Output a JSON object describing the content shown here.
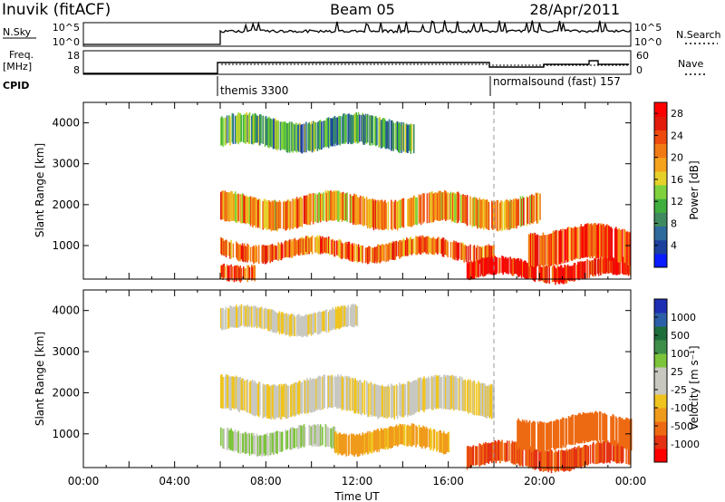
{
  "header": {
    "station": "Inuvik (fitACF)",
    "beam": "Beam 05",
    "date": "28/Apr/2011"
  },
  "colors": {
    "power_scale": [
      "#0a1cff",
      "#1c3f9e",
      "#2f6a9c",
      "#3f8a5e",
      "#3fae3f",
      "#7fd23c",
      "#e6d12a",
      "#f5a21c",
      "#f27a14",
      "#ee4a0e",
      "#e21b0b",
      "#ff0000"
    ],
    "velocity_scale": [
      "#1e2fb4",
      "#2d5fa8",
      "#1e6e3c",
      "#3e8e4a",
      "#7cc43a",
      "#c8c8c0",
      "#c8c8c0",
      "#f0c41e",
      "#f09a1c",
      "#ee6a12",
      "#e43212",
      "#ff0000"
    ],
    "ground_scatter": "#c8c8c0",
    "gridline": "#999999"
  },
  "top_panels": {
    "nsky": {
      "label_left": "N.Sky",
      "ticks_left": [
        "10^5",
        "10^0"
      ],
      "label_right": "N.Search",
      "ticks_right": [
        "10^5",
        "10^0"
      ]
    },
    "freq": {
      "label_left_line1": "Freq.",
      "label_left_line2": "[MHz]",
      "ticks_left": [
        "18",
        "8"
      ],
      "label_right": "Nave",
      "ticks_right": [
        "60",
        "0"
      ]
    },
    "cpid": {
      "label": "CPID",
      "mode1": "themis 3300",
      "mode2": "normalsound (fast) 157"
    }
  },
  "chart_data": [
    {
      "type": "heatmap",
      "title": "",
      "xlabel": "",
      "ylabel": "Slant Range [km]",
      "colorbar_label": "Power [dB]",
      "colorbar_ticks": [
        "4",
        "8",
        "12",
        "16",
        "20",
        "24",
        "28"
      ],
      "colorbar_range": [
        0,
        30
      ],
      "ylim": [
        180,
        4500
      ],
      "xlim_hours": [
        0,
        24
      ],
      "y_ticks": [
        "1000",
        "2000",
        "3000",
        "4000"
      ],
      "data_start_hour": 6.0,
      "mode_change_hour": 18.0,
      "bands": [
        {
          "range_km": [
            1500,
            2200
          ],
          "hours": [
            6,
            20
          ],
          "power_db": 20
        },
        {
          "range_km": [
            700,
            1100
          ],
          "hours": [
            6,
            18
          ],
          "power_db": 22
        },
        {
          "range_km": [
            250,
            600
          ],
          "hours": [
            6,
            7.5
          ],
          "power_db": 24
        },
        {
          "range_km": [
            200,
            600
          ],
          "hours": [
            16.8,
            24
          ],
          "power_db": 26
        },
        {
          "range_km": [
            600,
            1400
          ],
          "hours": [
            19.5,
            24
          ],
          "power_db": 24
        },
        {
          "range_km": [
            3400,
            4100
          ],
          "hours": [
            6,
            14.5
          ],
          "power_db": 10
        }
      ]
    },
    {
      "type": "heatmap",
      "title": "",
      "xlabel": "Time UT",
      "ylabel": "Slant Range [km]",
      "colorbar_label": "Velocity [m s⁻¹]",
      "colorbar_ticks": [
        "1000",
        "500",
        "100",
        "25",
        "-25",
        "-100",
        "-500",
        "-1000"
      ],
      "ylim": [
        180,
        4500
      ],
      "xlim_hours": [
        0,
        24
      ],
      "x_ticks": [
        "00:00",
        "04:00",
        "08:00",
        "12:00",
        "16:00",
        "20:00",
        "00:00"
      ],
      "y_ticks": [
        "1000",
        "2000",
        "3000",
        "4000"
      ],
      "data_start_hour": 6.0,
      "mode_change_hour": 18.0,
      "bands": [
        {
          "range_km": [
            1500,
            2300
          ],
          "hours": [
            6,
            18
          ],
          "velocity": 0
        },
        {
          "range_km": [
            600,
            1100
          ],
          "hours": [
            6,
            11
          ],
          "velocity": 120
        },
        {
          "range_km": [
            600,
            1100
          ],
          "hours": [
            11,
            16
          ],
          "velocity": -150
        },
        {
          "range_km": [
            200,
            700
          ],
          "hours": [
            16.8,
            24
          ],
          "velocity": -500
        },
        {
          "range_km": [
            700,
            1400
          ],
          "hours": [
            19,
            24
          ],
          "velocity": -400
        },
        {
          "range_km": [
            3500,
            4000
          ],
          "hours": [
            6,
            12
          ],
          "velocity": 0
        }
      ]
    }
  ]
}
